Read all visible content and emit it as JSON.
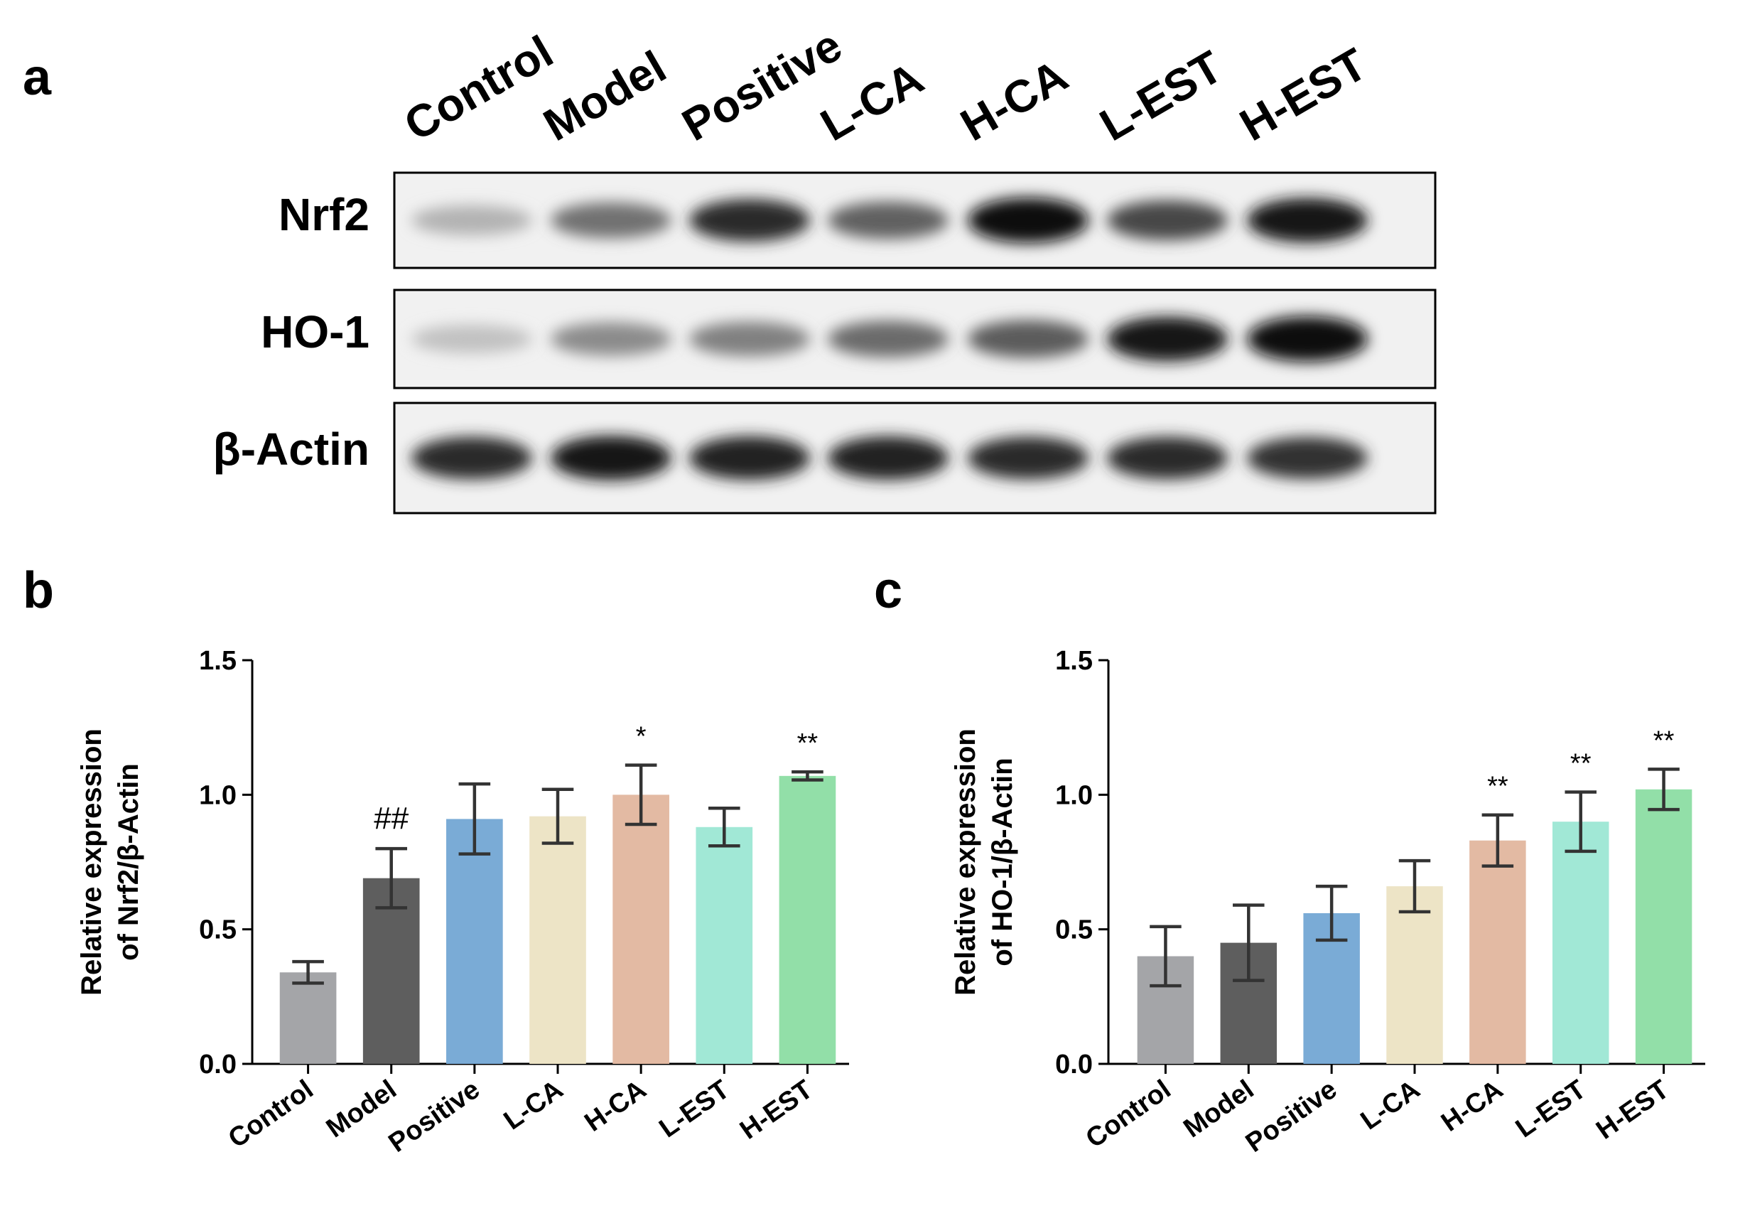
{
  "panels": {
    "a": "a",
    "b": "b",
    "c": "c"
  },
  "blot": {
    "lanes": [
      "Control",
      "Model",
      "Positive",
      "L-CA",
      "H-CA",
      "L-EST",
      "H-EST"
    ],
    "rows": [
      {
        "label": "Nrf2",
        "intensity": [
          0.22,
          0.52,
          0.85,
          0.6,
          1.0,
          0.72,
          0.95
        ]
      },
      {
        "label": "HO-1",
        "intensity": [
          0.15,
          0.4,
          0.45,
          0.55,
          0.62,
          0.95,
          1.0
        ]
      },
      {
        "label": "β-Actin",
        "intensity": [
          0.85,
          0.95,
          0.9,
          0.9,
          0.85,
          0.85,
          0.82
        ]
      }
    ]
  },
  "chart_data": [
    {
      "type": "bar",
      "panel": "b",
      "categories": [
        "Control",
        "Model",
        "Positive",
        "L-CA",
        "H-CA",
        "L-EST",
        "H-EST"
      ],
      "values": [
        0.34,
        0.69,
        0.91,
        0.92,
        1.0,
        0.88,
        1.07
      ],
      "errors": [
        0.04,
        0.11,
        0.13,
        0.1,
        0.11,
        0.07,
        0.015
      ],
      "annotations": [
        "",
        "##",
        "",
        "",
        "*",
        "",
        "**"
      ],
      "colors": [
        "#a4a5a8",
        "#5e5e5e",
        "#7aabd6",
        "#ede4c6",
        "#e3baa3",
        "#a1e8d6",
        "#92dfa8"
      ],
      "ylabel_lines": [
        "Relative expression",
        "of Nrf2/β-Actin"
      ],
      "xlabel": "",
      "ylim": [
        0,
        1.5
      ],
      "yticks": [
        "0.0",
        "0.5",
        "1.0",
        "1.5"
      ]
    },
    {
      "type": "bar",
      "panel": "c",
      "categories": [
        "Control",
        "Model",
        "Positive",
        "L-CA",
        "H-CA",
        "L-EST",
        "H-EST"
      ],
      "values": [
        0.4,
        0.45,
        0.56,
        0.66,
        0.83,
        0.9,
        1.02
      ],
      "errors": [
        0.11,
        0.14,
        0.1,
        0.095,
        0.095,
        0.11,
        0.075
      ],
      "annotations": [
        "",
        "",
        "",
        "",
        "**",
        "**",
        "**"
      ],
      "colors": [
        "#a4a5a8",
        "#5e5e5e",
        "#7aabd6",
        "#ede4c6",
        "#e3baa3",
        "#a1e8d6",
        "#92dfa8"
      ],
      "ylabel_lines": [
        "Relative expression",
        "of HO-1/β-Actin"
      ],
      "xlabel": "",
      "ylim": [
        0,
        1.5
      ],
      "yticks": [
        "0.0",
        "0.5",
        "1.0",
        "1.5"
      ]
    }
  ]
}
